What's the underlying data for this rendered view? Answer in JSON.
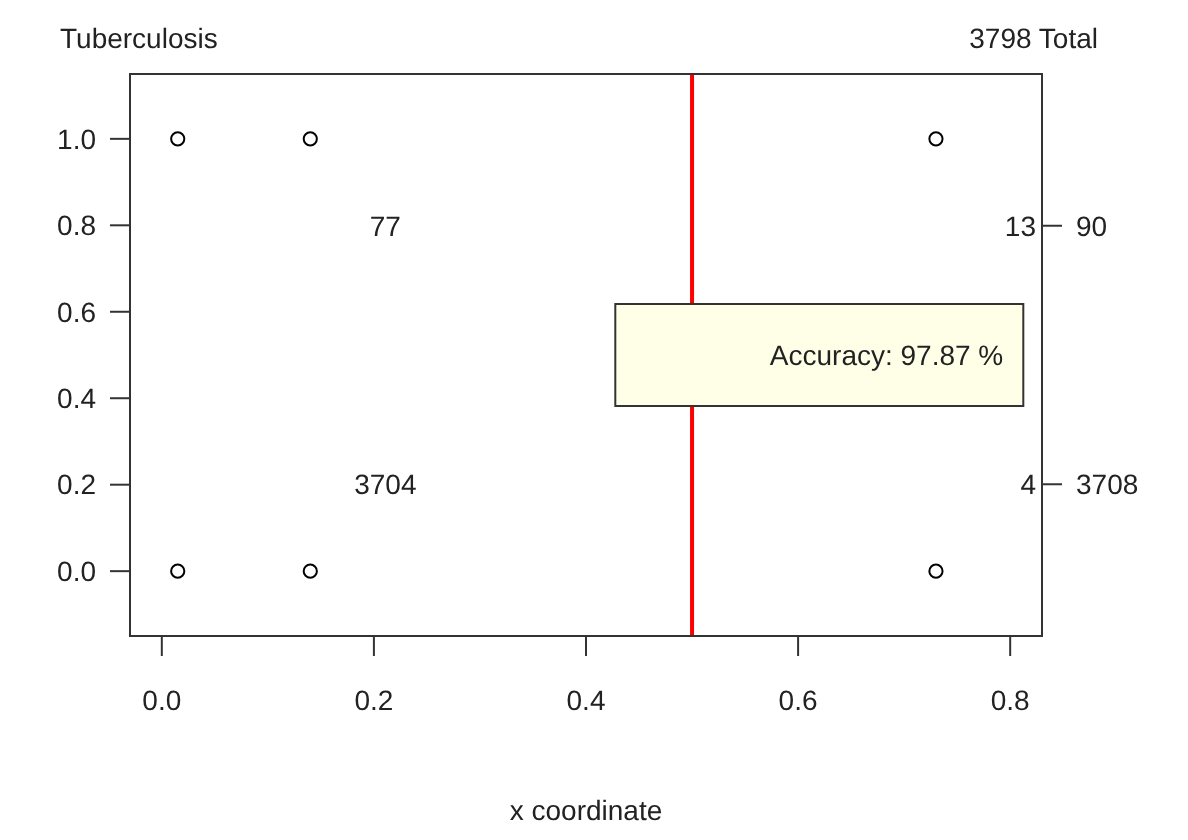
{
  "chart_data": {
    "type": "scatter",
    "title": "Tuberculosis",
    "xlabel": "x coordinate",
    "series": [
      {
        "color": "#000000",
        "x": [
          0.015,
          0.14,
          0.73,
          0.015,
          0.14,
          0.73
        ],
        "values": [
          1,
          1,
          1,
          0,
          0,
          0
        ]
      }
    ],
    "xlim": [
      -0.03,
      0.83
    ],
    "xticks": [
      {
        "value": 0,
        "label": "0.0"
      },
      0.2,
      0.4,
      0.6,
      0.8
    ],
    "ylim": [
      -0.15,
      1.15
    ],
    "yticks": [
      {
        "value": 0,
        "label": "0.0"
      },
      0.2,
      0.4,
      0.6,
      0.8,
      {
        "value": 1,
        "label": "1.0"
      }
    ],
    "marker": "circle",
    "grid": false,
    "ref_lines": [
      {
        "axis": "x",
        "value": 0.5,
        "color": "#ff0000",
        "line_style": "solid"
      }
    ],
    "annotations": [
      "77",
      "13",
      "3704",
      "4",
      "90",
      "3708",
      "3798 Total",
      "Accuracy: 97.87 %"
    ]
  }
}
